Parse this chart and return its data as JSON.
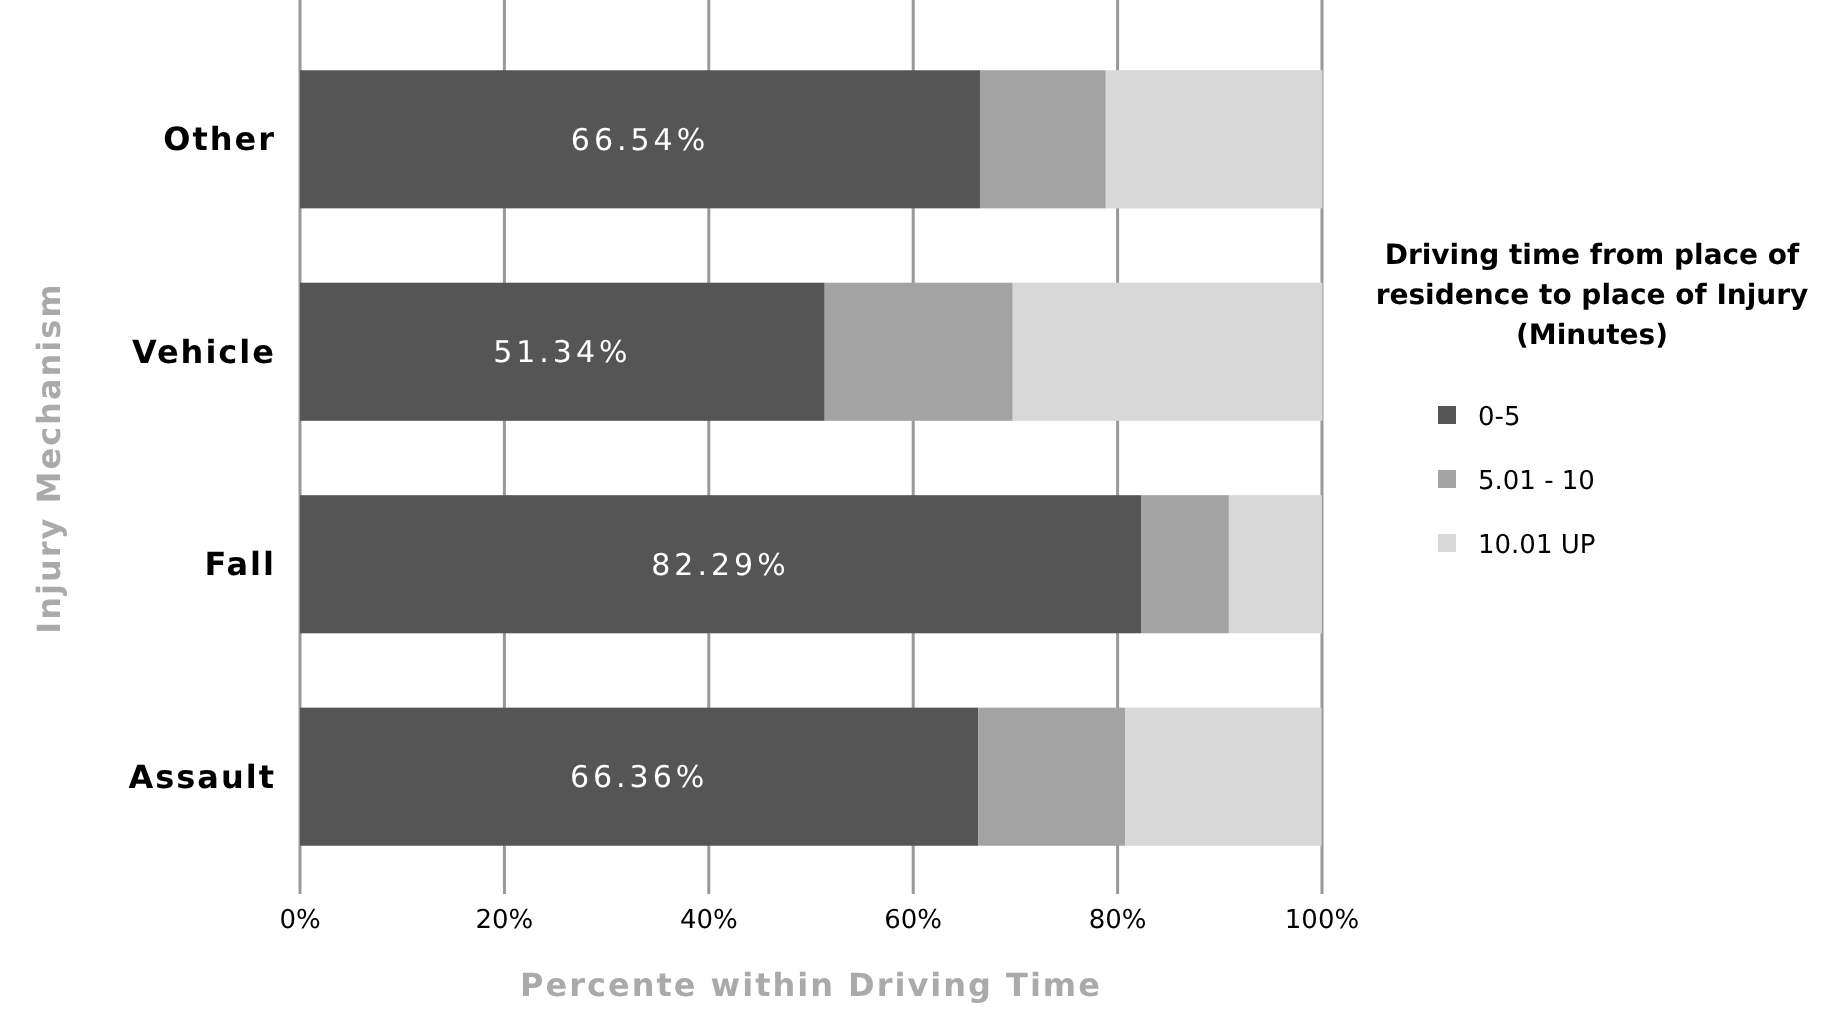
{
  "chart_data": {
    "type": "bar",
    "orientation": "horizontal",
    "stacked": true,
    "xlabel": "Percente within Driving Time",
    "ylabel": "Injury Mechanism",
    "legend_title": "Driving time from place of residence to place of Injury (Minutes)",
    "categories": [
      "Other",
      "Vehicle",
      "Fall",
      "Assault"
    ],
    "series": [
      {
        "name": "0-5",
        "color": "#555555",
        "values": [
          66.54,
          51.34,
          82.29,
          66.36
        ],
        "value_labels": [
          "66.54%",
          "51.34%",
          "82.29%",
          "66.36%"
        ]
      },
      {
        "name": "5.01 - 10",
        "color": "#a3a3a3",
        "values": [
          12.3,
          18.4,
          8.6,
          14.4
        ]
      },
      {
        "name": "10.01 UP",
        "color": "#d8d8d8",
        "values": [
          21.2,
          30.3,
          9.1,
          19.2
        ]
      }
    ],
    "xlim": [
      0,
      100
    ],
    "xticks": [
      {
        "value": 0,
        "label": "0%"
      },
      {
        "value": 20,
        "label": "20%"
      },
      {
        "value": 40,
        "label": "40%"
      },
      {
        "value": 60,
        "label": "60%"
      },
      {
        "value": 80,
        "label": "80%"
      },
      {
        "value": 100,
        "label": "100%"
      }
    ],
    "grid": "x",
    "legend": "right"
  }
}
